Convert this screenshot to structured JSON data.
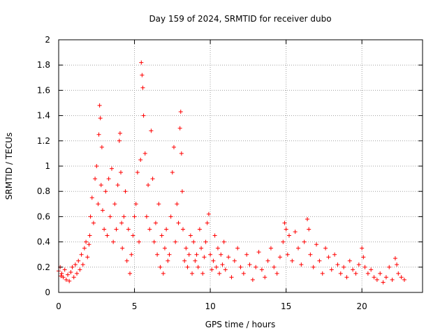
{
  "chart_data": {
    "type": "scatter",
    "title": "Day 159 of 2024, SRMTID for receiver dubo",
    "xlabel": "GPS time / hours",
    "ylabel": "SRMTID / TECUs",
    "xlim": [
      0,
      24
    ],
    "ylim": [
      0,
      2
    ],
    "grid": true,
    "marker": "+",
    "color": "#ff0000",
    "x_ticks": [
      "0",
      "5",
      "10",
      "15",
      "20"
    ],
    "x_tick_values": [
      0,
      5,
      10,
      15,
      20
    ],
    "y_ticks": [
      "0",
      "0.2",
      "0.4",
      "0.6",
      "0.8",
      "1",
      "1.2",
      "1.4",
      "1.6",
      "1.8",
      "2"
    ],
    "y_tick_values": [
      0,
      0.2,
      0.4,
      0.6,
      0.8,
      1.0,
      1.2,
      1.4,
      1.6,
      1.8,
      2.0
    ],
    "series": [
      {
        "name": "SRMTID",
        "x": [
          0.0,
          0.1,
          0.15,
          0.2,
          0.3,
          0.4,
          0.5,
          0.6,
          0.7,
          0.8,
          0.9,
          1.0,
          1.1,
          1.2,
          1.3,
          1.4,
          1.5,
          1.6,
          1.7,
          1.8,
          1.9,
          2.0,
          2.05,
          2.1,
          2.2,
          2.3,
          2.4,
          2.5,
          2.6,
          2.65,
          2.7,
          2.75,
          2.8,
          2.85,
          2.9,
          3.0,
          3.1,
          3.2,
          3.3,
          3.4,
          3.5,
          3.6,
          3.7,
          3.8,
          3.9,
          4.0,
          4.05,
          4.1,
          4.15,
          4.2,
          4.3,
          4.4,
          4.5,
          4.6,
          4.7,
          4.8,
          4.9,
          5.0,
          5.1,
          5.2,
          5.3,
          5.4,
          5.45,
          5.5,
          5.55,
          5.6,
          5.7,
          5.8,
          5.9,
          6.0,
          6.1,
          6.2,
          6.3,
          6.4,
          6.5,
          6.6,
          6.7,
          6.8,
          6.9,
          7.0,
          7.1,
          7.2,
          7.3,
          7.4,
          7.5,
          7.6,
          7.7,
          7.8,
          7.9,
          8.0,
          8.05,
          8.1,
          8.15,
          8.2,
          8.3,
          8.4,
          8.5,
          8.6,
          8.7,
          8.8,
          8.9,
          9.0,
          9.1,
          9.2,
          9.3,
          9.4,
          9.5,
          9.6,
          9.7,
          9.8,
          9.9,
          10.0,
          10.1,
          10.2,
          10.3,
          10.4,
          10.5,
          10.6,
          10.7,
          10.8,
          10.9,
          11.0,
          11.2,
          11.4,
          11.6,
          11.8,
          12.0,
          12.2,
          12.4,
          12.6,
          12.8,
          13.0,
          13.2,
          13.4,
          13.6,
          13.8,
          14.0,
          14.2,
          14.4,
          14.6,
          14.8,
          14.9,
          15.0,
          15.1,
          15.2,
          15.4,
          15.6,
          15.8,
          16.0,
          16.2,
          16.4,
          16.5,
          16.6,
          16.8,
          17.0,
          17.2,
          17.4,
          17.6,
          17.8,
          18.0,
          18.2,
          18.4,
          18.6,
          18.8,
          19.0,
          19.2,
          19.4,
          19.6,
          19.8,
          20.0,
          20.1,
          20.2,
          20.4,
          20.6,
          20.8,
          21.0,
          21.2,
          21.4,
          21.6,
          21.8,
          22.0,
          22.2,
          22.3,
          22.4,
          22.6,
          22.8
        ],
        "y": [
          0.17,
          0.2,
          0.13,
          0.15,
          0.12,
          0.18,
          0.1,
          0.14,
          0.09,
          0.16,
          0.2,
          0.12,
          0.22,
          0.15,
          0.25,
          0.18,
          0.3,
          0.22,
          0.35,
          0.4,
          0.28,
          0.38,
          0.45,
          0.6,
          0.75,
          0.55,
          0.9,
          1.0,
          0.7,
          1.25,
          1.48,
          1.38,
          0.85,
          1.15,
          0.65,
          0.5,
          0.8,
          0.45,
          0.9,
          0.6,
          0.98,
          0.4,
          0.7,
          0.5,
          0.85,
          1.2,
          1.26,
          0.95,
          0.55,
          0.35,
          0.6,
          0.8,
          0.25,
          0.5,
          0.15,
          0.3,
          0.45,
          0.6,
          0.7,
          0.95,
          0.4,
          1.05,
          1.82,
          1.72,
          1.62,
          1.4,
          1.1,
          0.6,
          0.85,
          0.5,
          1.28,
          0.9,
          0.4,
          0.55,
          0.3,
          0.7,
          0.2,
          0.45,
          0.15,
          0.35,
          0.5,
          0.25,
          0.3,
          0.6,
          0.95,
          1.15,
          0.4,
          0.7,
          0.55,
          1.3,
          1.43,
          1.1,
          0.8,
          0.5,
          0.25,
          0.35,
          0.2,
          0.3,
          0.45,
          0.15,
          0.4,
          0.25,
          0.3,
          0.2,
          0.5,
          0.35,
          0.15,
          0.28,
          0.4,
          0.55,
          0.62,
          0.3,
          0.18,
          0.25,
          0.45,
          0.2,
          0.35,
          0.15,
          0.3,
          0.22,
          0.4,
          0.18,
          0.28,
          0.12,
          0.25,
          0.35,
          0.2,
          0.15,
          0.3,
          0.22,
          0.1,
          0.2,
          0.32,
          0.18,
          0.12,
          0.25,
          0.35,
          0.2,
          0.15,
          0.28,
          0.4,
          0.55,
          0.5,
          0.3,
          0.45,
          0.25,
          0.48,
          0.35,
          0.22,
          0.4,
          0.58,
          0.5,
          0.3,
          0.2,
          0.38,
          0.25,
          0.15,
          0.35,
          0.28,
          0.18,
          0.3,
          0.22,
          0.15,
          0.2,
          0.12,
          0.25,
          0.18,
          0.15,
          0.22,
          0.35,
          0.28,
          0.2,
          0.15,
          0.18,
          0.12,
          0.1,
          0.15,
          0.08,
          0.12,
          0.2,
          0.1,
          0.27,
          0.22,
          0.15,
          0.12,
          0.1
        ]
      }
    ]
  }
}
